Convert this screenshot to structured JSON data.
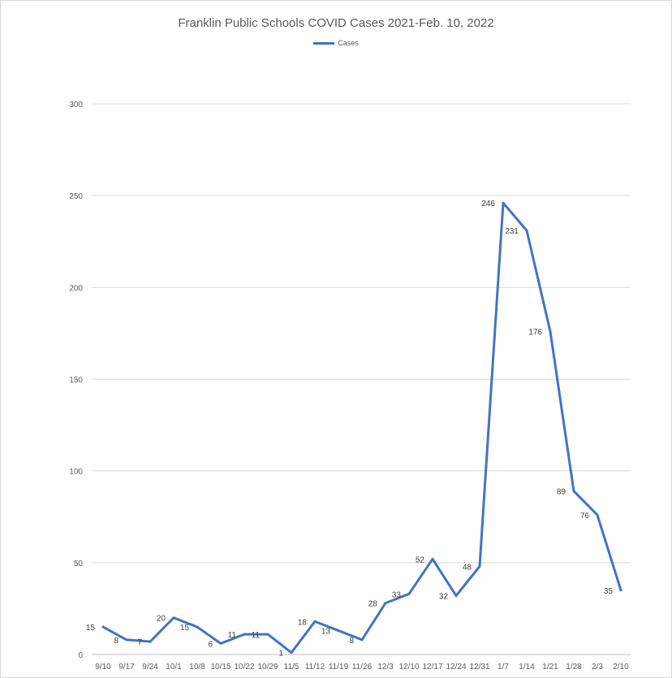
{
  "chart_data": {
    "type": "line",
    "title": "Franklin Public Schools COVID Cases 2021-Feb. 10, 2022",
    "categories": [
      "9/10",
      "9/17",
      "9/24",
      "10/1",
      "10/8",
      "10/15",
      "10/22",
      "10/29",
      "11/5",
      "11/12",
      "11/19",
      "11/26",
      "12/3",
      "12/10",
      "12/17",
      "12/24",
      "12/31",
      "1/7",
      "1/14",
      "1/21",
      "1/28",
      "2/3",
      "2/10"
    ],
    "series": [
      {
        "name": "Cases",
        "color": "#4472c4",
        "values": [
          15,
          8,
          7,
          20,
          15,
          6,
          11,
          11,
          1,
          18,
          13,
          8,
          28,
          33,
          52,
          32,
          48,
          246,
          231,
          176,
          89,
          76,
          35
        ]
      }
    ],
    "ylim": [
      0,
      300
    ],
    "yticks": [
      0,
      50,
      100,
      150,
      200,
      250,
      300
    ],
    "grid": true,
    "legend": "top",
    "xlabel": "",
    "ylabel": ""
  }
}
